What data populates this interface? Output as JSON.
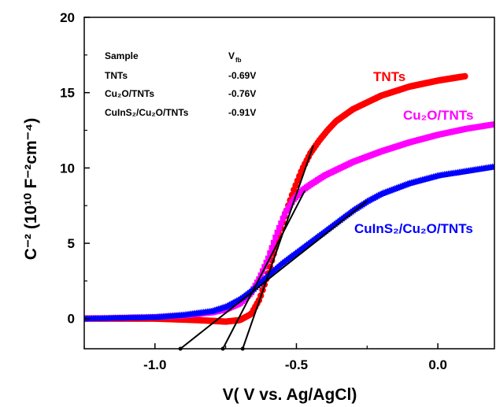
{
  "chart_data": {
    "type": "scatter",
    "xlabel": "V( V vs. Ag/AgCl)",
    "ylabel": "C⁻² (10¹⁰ F⁻²cm⁻⁴)",
    "xlim": [
      -1.25,
      0.2
    ],
    "ylim": [
      -2,
      20
    ],
    "x_ticks": [
      -1.0,
      -0.5,
      0.0
    ],
    "x_tick_labels": [
      "-1.0",
      "-0.5",
      "0.0"
    ],
    "y_ticks": [
      0,
      5,
      10,
      15,
      20
    ],
    "y_tick_labels": [
      "0",
      "5",
      "10",
      "15",
      "20"
    ],
    "grid": false,
    "legend": "inline labels next to curves",
    "series": [
      {
        "name": "TNTs",
        "color": "#ff0000",
        "marker": "circle",
        "x": [
          -1.25,
          -1.0,
          -0.85,
          -0.75,
          -0.7,
          -0.66,
          -0.63,
          -0.6,
          -0.57,
          -0.54,
          -0.51,
          -0.48,
          -0.45,
          -0.42,
          -0.39,
          -0.36,
          -0.3,
          -0.2,
          -0.1,
          0.0,
          0.1
        ],
        "y": [
          0.0,
          0.0,
          -0.1,
          -0.2,
          -0.1,
          0.3,
          1.3,
          3.0,
          5.0,
          6.9,
          8.5,
          9.9,
          11.0,
          11.8,
          12.5,
          13.1,
          13.9,
          14.8,
          15.4,
          15.8,
          16.1
        ]
      },
      {
        "name": "Cu₂O/TNTs",
        "color": "#ff00ff",
        "marker": "square",
        "x": [
          -1.25,
          -1.0,
          -0.9,
          -0.8,
          -0.75,
          -0.7,
          -0.66,
          -0.63,
          -0.6,
          -0.57,
          -0.54,
          -0.51,
          -0.48,
          -0.45,
          -0.4,
          -0.3,
          -0.2,
          -0.1,
          0.0,
          0.1,
          0.2
        ],
        "y": [
          0.0,
          0.1,
          0.2,
          0.4,
          0.6,
          1.0,
          1.7,
          2.7,
          4.0,
          5.6,
          7.0,
          7.9,
          8.5,
          8.9,
          9.5,
          10.4,
          11.1,
          11.7,
          12.2,
          12.6,
          12.9
        ]
      },
      {
        "name": "CuInS₂/Cu₂O/TNTs",
        "color": "#0000ff",
        "marker": "triangle",
        "x": [
          -1.25,
          -1.0,
          -0.9,
          -0.8,
          -0.75,
          -0.7,
          -0.65,
          -0.6,
          -0.55,
          -0.5,
          -0.45,
          -0.4,
          -0.35,
          -0.3,
          -0.25,
          -0.2,
          -0.1,
          0.0,
          0.1,
          0.2
        ],
        "y": [
          0.0,
          0.1,
          0.25,
          0.5,
          0.8,
          1.3,
          2.0,
          2.9,
          3.7,
          4.4,
          5.1,
          5.8,
          6.5,
          7.2,
          7.8,
          8.3,
          9.0,
          9.5,
          9.8,
          10.1
        ]
      }
    ],
    "fit_lines": [
      {
        "x": [
          -0.69,
          -0.44
        ],
        "y": [
          -2,
          11.5
        ]
      },
      {
        "x": [
          -0.76,
          -0.47
        ],
        "y": [
          -2,
          8.5
        ]
      },
      {
        "x": [
          -0.91,
          -0.25
        ],
        "y": [
          -2,
          7.8
        ]
      }
    ],
    "table": {
      "headers": [
        "Sample",
        "V",
        "fb"
      ],
      "rows": [
        {
          "sample": "TNTs",
          "value": "-0.69V"
        },
        {
          "sample": "Cu₂O/TNTs",
          "value": "-0.76V"
        },
        {
          "sample": "CuInS₂/Cu₂O/TNTs",
          "value": "-0.91V"
        }
      ]
    }
  }
}
